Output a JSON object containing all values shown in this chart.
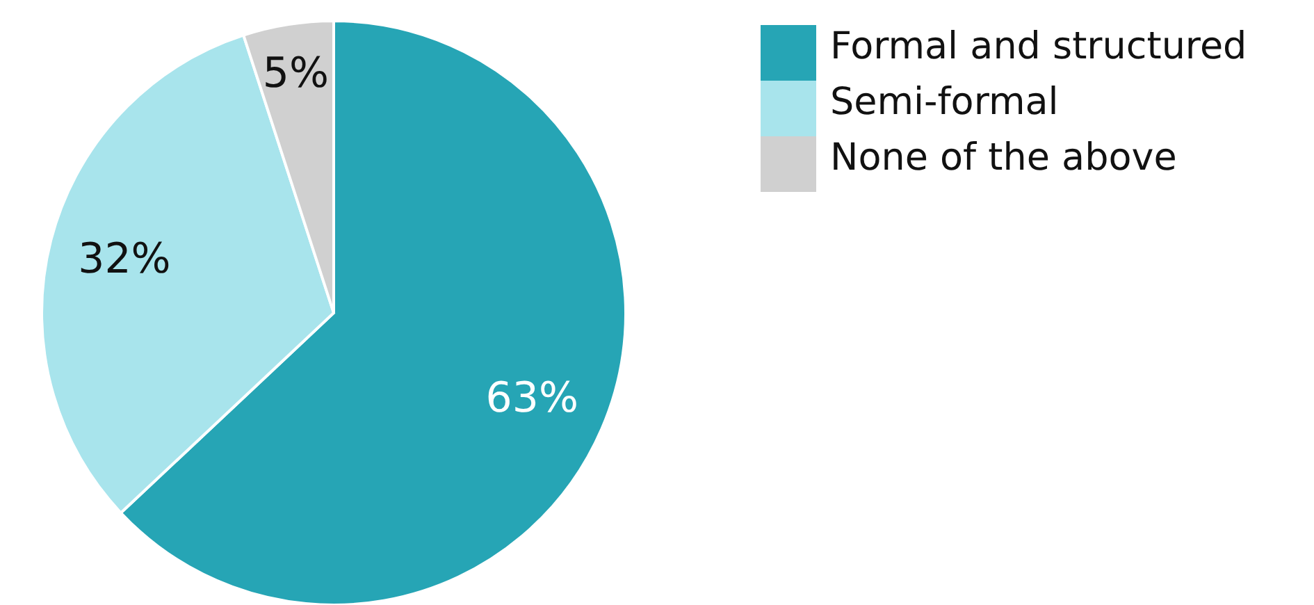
{
  "chart_data": {
    "type": "pie",
    "categories": [
      "Formal and structured",
      "Semi-formal",
      "None of the above"
    ],
    "values": [
      63,
      32,
      5
    ],
    "colors": [
      "#26a5b5",
      "#a8e4ec",
      "#d0d0d0"
    ],
    "value_labels": [
      "63%",
      "32%",
      "5%"
    ],
    "legend": "top right"
  }
}
